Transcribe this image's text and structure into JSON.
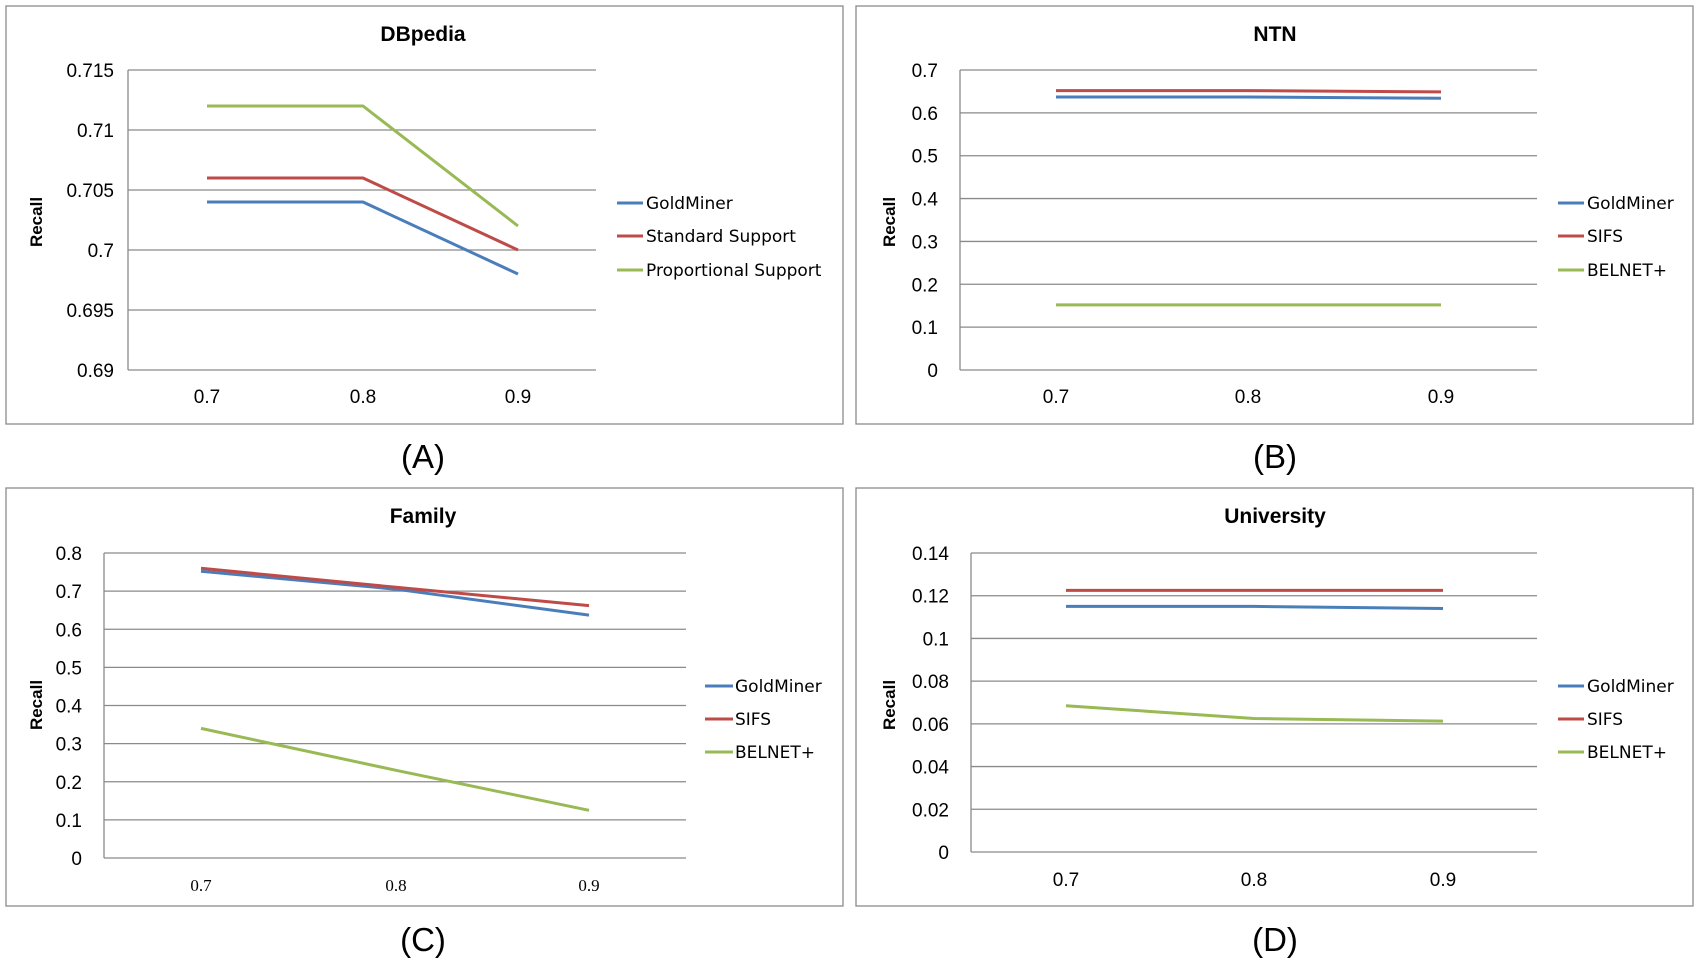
{
  "colors": {
    "blue": "#4a7ebb",
    "red": "#be4b48",
    "green": "#98b954"
  },
  "chart_data": [
    {
      "type": "line",
      "title": "DBpedia",
      "caption": "(A)",
      "ylabel": "Recall",
      "xlabel": "",
      "categories": [
        "0.7",
        "0.8",
        "0.9"
      ],
      "yticks": [
        "0.69",
        "0.695",
        "0.7",
        "0.705",
        "0.71",
        "0.715"
      ],
      "ylim": [
        0.69,
        0.715
      ],
      "grid": true,
      "legend_position": "right",
      "series": [
        {
          "name": "GoldMiner",
          "color": "#4a7ebb",
          "values": [
            0.704,
            0.704,
            0.698
          ]
        },
        {
          "name": "Standard Support",
          "color": "#be4b48",
          "values": [
            0.706,
            0.706,
            0.7
          ]
        },
        {
          "name": "Proportional Support",
          "color": "#98b954",
          "values": [
            0.712,
            0.712,
            0.702
          ]
        }
      ]
    },
    {
      "type": "line",
      "title": "NTN",
      "caption": "(B)",
      "ylabel": "Recall",
      "xlabel": "",
      "categories": [
        "0.7",
        "0.8",
        "0.9"
      ],
      "yticks": [
        "0",
        "0.1",
        "0.2",
        "0.3",
        "0.4",
        "0.5",
        "0.6",
        "0.7"
      ],
      "ylim": [
        0,
        0.7
      ],
      "grid": true,
      "legend_position": "right",
      "series": [
        {
          "name": "GoldMiner",
          "color": "#4a7ebb",
          "values": [
            0.637,
            0.637,
            0.634
          ]
        },
        {
          "name": "SIFS",
          "color": "#be4b48",
          "values": [
            0.652,
            0.652,
            0.649
          ]
        },
        {
          "name": "BELNET+",
          "color": "#98b954",
          "values": [
            0.152,
            0.152,
            0.152
          ]
        }
      ]
    },
    {
      "type": "line",
      "title": "Family",
      "caption": "(C)",
      "ylabel": "Recall",
      "xlabel": "",
      "categories": [
        "0.7",
        "0.8",
        "0.9"
      ],
      "yticks": [
        "0",
        "0.1",
        "0.2",
        "0.3",
        "0.4",
        "0.5",
        "0.6",
        "0.7",
        "0.8"
      ],
      "ylim": [
        0,
        0.8
      ],
      "grid": true,
      "legend_position": "right",
      "series": [
        {
          "name": "GoldMiner",
          "color": "#4a7ebb",
          "values": [
            0.752,
            0.705,
            0.637
          ]
        },
        {
          "name": "SIFS",
          "color": "#be4b48",
          "values": [
            0.76,
            0.71,
            0.662
          ]
        },
        {
          "name": "BELNET+",
          "color": "#98b954",
          "values": [
            0.34,
            0.23,
            0.125
          ]
        }
      ]
    },
    {
      "type": "line",
      "title": "University",
      "caption": "(D)",
      "ylabel": "Recall",
      "xlabel": "",
      "categories": [
        "0.7",
        "0.8",
        "0.9"
      ],
      "yticks": [
        "0",
        "0.02",
        "0.04",
        "0.06",
        "0.08",
        "0.1",
        "0.12",
        "0.14"
      ],
      "ylim": [
        0,
        0.14
      ],
      "grid": true,
      "legend_position": "right",
      "series": [
        {
          "name": "GoldMiner",
          "color": "#4a7ebb",
          "values": [
            0.115,
            0.115,
            0.114
          ]
        },
        {
          "name": "SIFS",
          "color": "#be4b48",
          "values": [
            0.1225,
            0.1225,
            0.1225
          ]
        },
        {
          "name": "BELNET+",
          "color": "#98b954",
          "values": [
            0.0685,
            0.0625,
            0.0613
          ]
        }
      ]
    }
  ]
}
